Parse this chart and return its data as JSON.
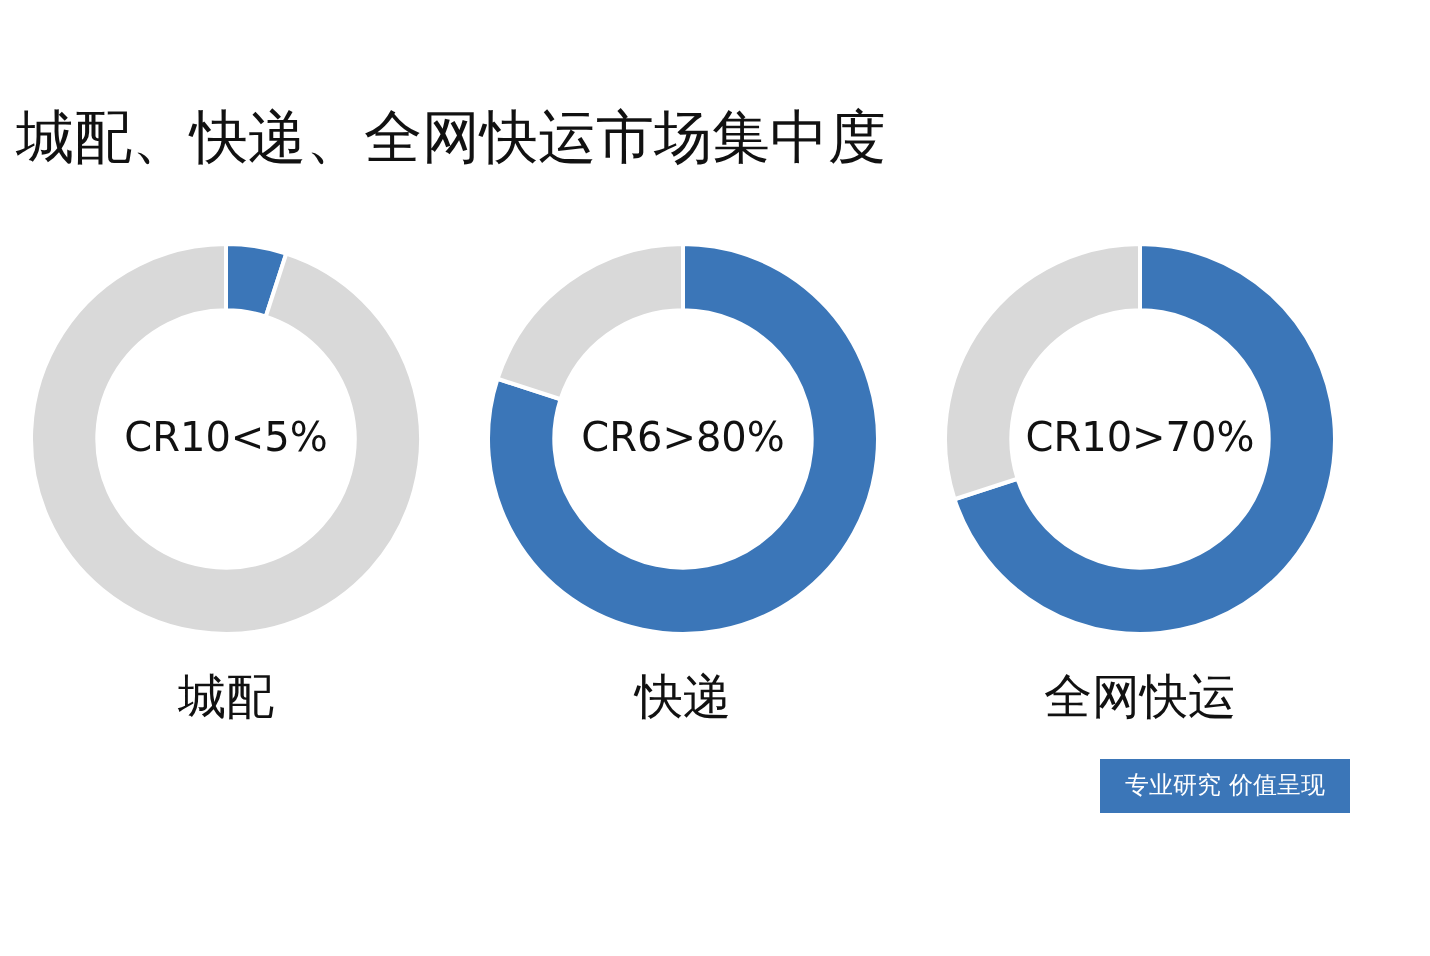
{
  "chart_data": [
    {
      "type": "donut",
      "title": "城配、快递、全网快运市场集中度",
      "xlabel": "城配",
      "annotations": [
        "CR10<5%"
      ],
      "categories": [
        null,
        null
      ],
      "values": [
        5,
        95
      ],
      "colors": [
        "#3b76b8",
        "#d9d9d9"
      ]
    },
    {
      "type": "donut",
      "xlabel": "快递",
      "annotations": [
        "CR6>80%"
      ],
      "categories": [
        null,
        null
      ],
      "values": [
        80,
        20
      ],
      "colors": [
        "#3b76b8",
        "#d9d9d9"
      ]
    },
    {
      "type": "donut",
      "xlabel": "全网快运",
      "annotations": [
        "CR10>70%",
        "专业研究 价值呈现"
      ],
      "categories": [
        null,
        null
      ],
      "values": [
        70,
        30
      ],
      "colors": [
        "#3b76b8",
        "#d9d9d9"
      ]
    }
  ]
}
